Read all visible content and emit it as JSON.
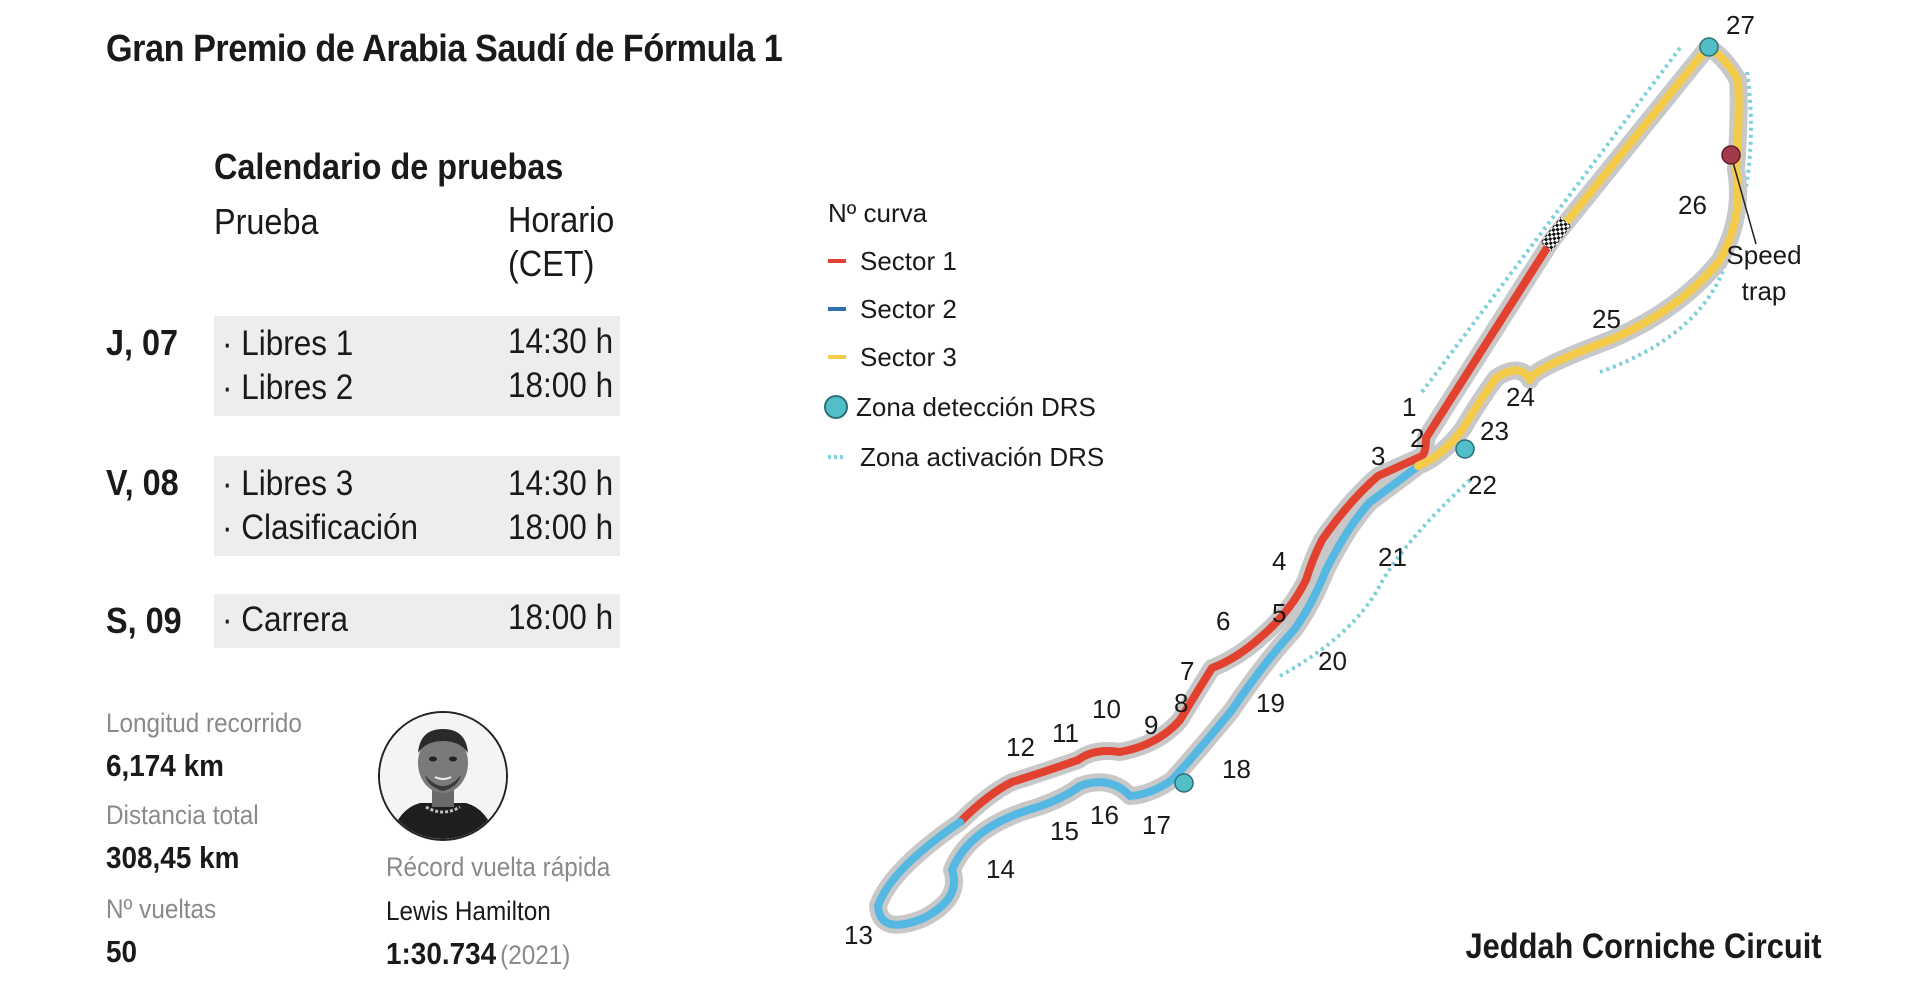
{
  "title": "Gran Premio de Arabia Saudí de Fórmula 1",
  "schedule": {
    "heading": "Calendario de pruebas",
    "col_event": "Prueba",
    "col_time_line1": "Horario",
    "col_time_line2": "(CET)",
    "days": [
      {
        "label": "J, 07",
        "events": [
          {
            "name": "· Libres 1",
            "time": "14:30 h"
          },
          {
            "name": "· Libres 2",
            "time": "18:00 h"
          }
        ]
      },
      {
        "label": "V, 08",
        "events": [
          {
            "name": "· Libres 3",
            "time": "14:30 h"
          },
          {
            "name": "· Clasificación",
            "time": "18:00 h"
          }
        ]
      },
      {
        "label": "S, 09",
        "events": [
          {
            "name": "·  Carrera",
            "time": "18:00 h"
          }
        ]
      }
    ]
  },
  "stats": {
    "length_label": "Longitud recorrido",
    "length_value": "6,174 km",
    "distance_label": "Distancia total",
    "distance_value": "308,45 km",
    "laps_label": "Nº vueltas",
    "laps_value": "50"
  },
  "record": {
    "label": "Récord vuelta rápida",
    "driver": "Lewis Hamilton",
    "time": "1:30.734",
    "year": "(2021)"
  },
  "legend": {
    "corner_label": "Nº curva",
    "sector1": "Sector 1",
    "sector2": "Sector 2",
    "sector3": "Sector 3",
    "drs_detection": "Zona detección DRS",
    "drs_activation": "Zona activación DRS"
  },
  "speed_trap": {
    "line1": "Speed",
    "line2": "trap"
  },
  "circuit_name": "Jeddah Corniche Circuit",
  "corners": [
    "1",
    "2",
    "3",
    "4",
    "5",
    "6",
    "7",
    "8",
    "9",
    "10",
    "11",
    "12",
    "13",
    "14",
    "15",
    "16",
    "17",
    "18",
    "19",
    "20",
    "21",
    "22",
    "23",
    "24",
    "25",
    "26",
    "27"
  ],
  "colors": {
    "sector1": "#e2412f",
    "sector2": "#54b8e3",
    "sector3": "#f5cc4a",
    "legend_sector2": "#2f6fb5",
    "track_base": "#c8c8c8",
    "drs_detection": "#52bec8",
    "drs_activation": "#7cd0d8",
    "speed_trap": "#a33a4c",
    "day_block_bg": "#ededed"
  },
  "icons": {
    "finish_flag": "checkered-flag-icon",
    "driver_photo": "driver-portrait-icon"
  }
}
